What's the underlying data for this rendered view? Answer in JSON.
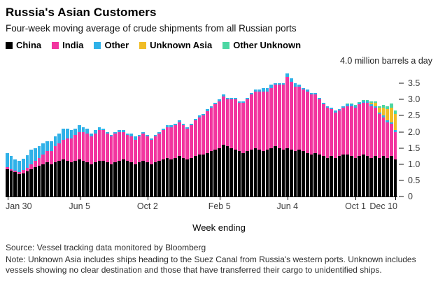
{
  "title": "Russia's Asian Customers",
  "subtitle": "Four-week moving average of crude shipments from all Russian ports",
  "legend": [
    {
      "label": "China",
      "color": "#000000"
    },
    {
      "label": "India",
      "color": "#f2359f"
    },
    {
      "label": "Other",
      "color": "#2fb1e8"
    },
    {
      "label": "Unknown Asia",
      "color": "#f0bc26"
    },
    {
      "label": "Other Unknown",
      "color": "#4cd7a3"
    }
  ],
  "y_axis": {
    "unit_label": "4.0 million barrels a day",
    "max": 4.0,
    "ticks": [
      {
        "value": 3.5,
        "label": "3.5"
      },
      {
        "value": 3.0,
        "label": "3.0"
      },
      {
        "value": 2.5,
        "label": "2.5"
      },
      {
        "value": 2.0,
        "label": "2.0"
      },
      {
        "value": 1.5,
        "label": "1.5"
      },
      {
        "value": 1.0,
        "label": "1.0"
      },
      {
        "value": 0.5,
        "label": "0.5"
      },
      {
        "value": 0,
        "label": "0"
      }
    ]
  },
  "x_axis": {
    "label": "Week ending",
    "ticks": [
      {
        "index": 0,
        "label": "Jan 30"
      },
      {
        "index": 18,
        "label": "Jun 5"
      },
      {
        "index": 35,
        "label": "Oct 2"
      },
      {
        "index": 53,
        "label": "Feb 5"
      },
      {
        "index": 70,
        "label": "Jun 4"
      },
      {
        "index": 87,
        "label": "Oct 1"
      },
      {
        "index": 97,
        "label": "Dec 10"
      }
    ]
  },
  "footer": {
    "source": "Source: Vessel tracking data monitored by Bloomberg",
    "note": "Note: Unknown Asia includes ships heading to the Suez Canal from Russia's western ports. Unknown includes vessels showing no clear destination and those that have transferred their cargo to unidentified ships."
  },
  "chart_data": {
    "type": "bar",
    "stacked": true,
    "n_points": 98,
    "ylim": [
      0,
      4.0
    ],
    "x_unit": "weekly, Jan 30 through Dec 10 (labeled ticks only)",
    "series": [
      {
        "name": "China",
        "color": "#000000",
        "values": [
          0.85,
          0.8,
          0.75,
          0.7,
          0.72,
          0.78,
          0.85,
          0.9,
          0.95,
          1.0,
          1.05,
          1.0,
          1.05,
          1.1,
          1.15,
          1.1,
          1.05,
          1.1,
          1.15,
          1.1,
          1.05,
          1.0,
          1.05,
          1.1,
          1.1,
          1.05,
          1.0,
          1.05,
          1.1,
          1.15,
          1.1,
          1.05,
          1.0,
          1.05,
          1.1,
          1.05,
          1.0,
          1.05,
          1.1,
          1.15,
          1.2,
          1.15,
          1.2,
          1.25,
          1.2,
          1.15,
          1.2,
          1.25,
          1.3,
          1.3,
          1.35,
          1.4,
          1.45,
          1.5,
          1.6,
          1.55,
          1.5,
          1.45,
          1.4,
          1.35,
          1.4,
          1.45,
          1.5,
          1.45,
          1.4,
          1.45,
          1.5,
          1.55,
          1.5,
          1.45,
          1.5,
          1.45,
          1.4,
          1.45,
          1.4,
          1.35,
          1.3,
          1.35,
          1.3,
          1.25,
          1.2,
          1.25,
          1.2,
          1.25,
          1.3,
          1.3,
          1.25,
          1.2,
          1.25,
          1.3,
          1.25,
          1.2,
          1.25,
          1.2,
          1.25,
          1.2,
          1.25,
          1.15
        ]
      },
      {
        "name": "India",
        "color": "#f2359f",
        "values": [
          0.05,
          0.05,
          0.05,
          0.05,
          0.1,
          0.1,
          0.15,
          0.2,
          0.25,
          0.3,
          0.35,
          0.4,
          0.5,
          0.55,
          0.6,
          0.7,
          0.75,
          0.8,
          0.85,
          0.9,
          0.9,
          0.85,
          0.9,
          0.95,
          0.95,
          0.9,
          0.85,
          0.9,
          0.9,
          0.85,
          0.8,
          0.8,
          0.75,
          0.8,
          0.85,
          0.8,
          0.75,
          0.8,
          0.85,
          0.9,
          0.95,
          1.0,
          1.0,
          1.05,
          1.0,
          0.95,
          1.0,
          1.1,
          1.15,
          1.2,
          1.3,
          1.35,
          1.4,
          1.45,
          1.5,
          1.45,
          1.5,
          1.55,
          1.5,
          1.55,
          1.6,
          1.7,
          1.75,
          1.8,
          1.85,
          1.8,
          1.85,
          1.9,
          1.95,
          2.0,
          2.2,
          2.1,
          2.0,
          1.95,
          1.9,
          1.9,
          1.85,
          1.8,
          1.7,
          1.6,
          1.55,
          1.45,
          1.4,
          1.4,
          1.45,
          1.5,
          1.55,
          1.55,
          1.6,
          1.6,
          1.65,
          1.6,
          1.5,
          1.35,
          1.2,
          1.1,
          1.0,
          0.85
        ]
      },
      {
        "name": "Other",
        "color": "#2fb1e8",
        "values": [
          0.45,
          0.4,
          0.35,
          0.35,
          0.35,
          0.4,
          0.45,
          0.4,
          0.35,
          0.35,
          0.3,
          0.3,
          0.3,
          0.3,
          0.35,
          0.3,
          0.25,
          0.2,
          0.2,
          0.15,
          0.15,
          0.1,
          0.1,
          0.1,
          0.05,
          0.05,
          0.05,
          0.05,
          0.05,
          0.05,
          0.05,
          0.1,
          0.1,
          0.05,
          0.05,
          0.05,
          0.05,
          0.05,
          0.05,
          0.05,
          0.05,
          0.05,
          0.05,
          0.05,
          0.05,
          0.05,
          0.05,
          0.05,
          0.05,
          0.05,
          0.05,
          0.05,
          0.05,
          0.05,
          0.05,
          0.05,
          0.05,
          0.05,
          0.05,
          0.05,
          0.05,
          0.05,
          0.05,
          0.05,
          0.1,
          0.1,
          0.1,
          0.05,
          0.05,
          0.05,
          0.1,
          0.1,
          0.1,
          0.05,
          0.05,
          0.05,
          0.05,
          0.05,
          0.05,
          0.05,
          0.05,
          0.05,
          0.05,
          0.05,
          0.05,
          0.05,
          0.05,
          0.05,
          0.05,
          0.05,
          0.05,
          0.05,
          0.05,
          0.05,
          0.05,
          0.05,
          0.05,
          0.05
        ]
      },
      {
        "name": "Unknown Asia",
        "color": "#f0bc26",
        "values": [
          0,
          0,
          0,
          0,
          0,
          0,
          0,
          0,
          0,
          0,
          0,
          0,
          0,
          0,
          0,
          0,
          0,
          0,
          0,
          0,
          0,
          0,
          0,
          0,
          0,
          0,
          0,
          0,
          0,
          0,
          0,
          0,
          0,
          0,
          0,
          0,
          0,
          0,
          0,
          0,
          0,
          0,
          0,
          0,
          0,
          0,
          0,
          0,
          0,
          0,
          0,
          0,
          0,
          0,
          0,
          0,
          0,
          0,
          0,
          0,
          0,
          0,
          0,
          0,
          0,
          0,
          0,
          0,
          0,
          0,
          0,
          0,
          0,
          0,
          0,
          0,
          0,
          0,
          0,
          0,
          0,
          0,
          0,
          0,
          0,
          0,
          0,
          0,
          0,
          0,
          0,
          0.05,
          0.1,
          0.15,
          0.25,
          0.35,
          0.45,
          0.5
        ]
      },
      {
        "name": "Other Unknown",
        "color": "#4cd7a3",
        "values": [
          0,
          0,
          0,
          0,
          0,
          0,
          0,
          0,
          0,
          0,
          0,
          0,
          0,
          0,
          0,
          0,
          0,
          0,
          0,
          0,
          0,
          0,
          0,
          0,
          0,
          0,
          0,
          0,
          0,
          0,
          0,
          0,
          0,
          0,
          0,
          0,
          0,
          0,
          0,
          0,
          0,
          0,
          0,
          0,
          0,
          0,
          0,
          0,
          0,
          0,
          0,
          0,
          0,
          0,
          0,
          0,
          0,
          0,
          0,
          0,
          0,
          0,
          0,
          0,
          0,
          0,
          0,
          0,
          0,
          0,
          0,
          0,
          0,
          0,
          0,
          0,
          0,
          0,
          0,
          0,
          0,
          0,
          0,
          0,
          0,
          0.03,
          0.03,
          0.03,
          0.03,
          0.03,
          0.03,
          0.05,
          0.05,
          0.05,
          0.08,
          0.1,
          0.12,
          0.12
        ]
      }
    ]
  }
}
